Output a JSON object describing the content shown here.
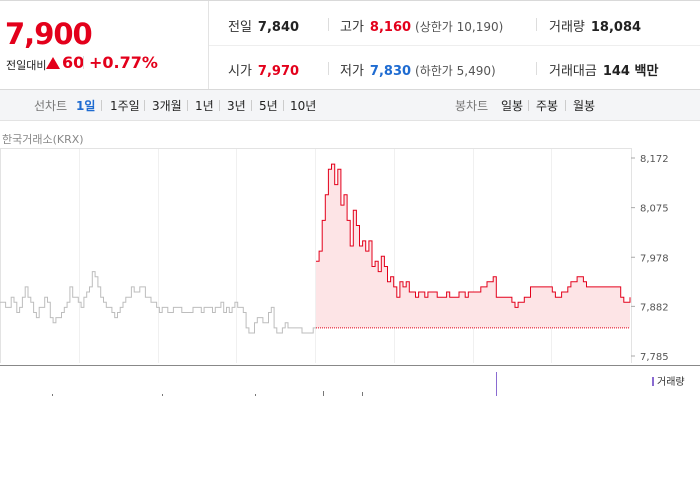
{
  "quote": {
    "price": "7,900",
    "change_label": "전일대비",
    "change_abs": "60",
    "change_pct": "+0.77%"
  },
  "stats": {
    "prev_close_label": "전일",
    "prev_close": "7,840",
    "high_label": "고가",
    "high": "8,160",
    "upper_limit": "(상한가 10,190)",
    "volume_label": "거래량",
    "volume": "18,084",
    "open_label": "시가",
    "open": "7,970",
    "low_label": "저가",
    "low": "7,830",
    "lower_limit": "(하한가 5,490)",
    "turnover_label": "거래대금",
    "turnover": "144 백만"
  },
  "nav": {
    "line_label": "선차트",
    "line_periods": [
      "1일",
      "1주일",
      "3개월",
      "1년",
      "3년",
      "5년",
      "10년"
    ],
    "selected_period": "1일",
    "candle_label": "봉차트",
    "candle_periods": [
      "일봉",
      "주봉",
      "월봉"
    ]
  },
  "chart": {
    "source": "한국거래소(KRX)",
    "volume_legend": "거래량",
    "colors": {
      "up": "#e3001b",
      "prev": "#bdbdbd",
      "fill": "#fde4e6",
      "volume": "#8a6bd1"
    }
  },
  "chart_data": {
    "type": "line",
    "y_ticks": [
      "8,172",
      "8,075",
      "7,978",
      "7,882",
      "7,785"
    ],
    "ylim": [
      7785,
      8172
    ],
    "baseline": 7840,
    "prev_day_series": [
      7890,
      7890,
      7880,
      7880,
      7900,
      7890,
      7870,
      7880,
      7900,
      7920,
      7900,
      7890,
      7870,
      7860,
      7880,
      7880,
      7900,
      7890,
      7860,
      7850,
      7860,
      7860,
      7870,
      7880,
      7890,
      7920,
      7900,
      7900,
      7890,
      7880,
      7900,
      7910,
      7920,
      7950,
      7940,
      7920,
      7900,
      7890,
      7880,
      7880,
      7870,
      7860,
      7870,
      7880,
      7890,
      7900,
      7900,
      7920,
      7910,
      7910,
      7920,
      7920,
      7900,
      7900,
      7890,
      7890,
      7880,
      7870,
      7880,
      7880,
      7870,
      7870,
      7880,
      7880,
      7880,
      7870,
      7870,
      7870,
      7870,
      7880,
      7880,
      7880,
      7870,
      7880,
      7880,
      7880,
      7870,
      7880,
      7880,
      7890,
      7870,
      7880,
      7870,
      7880,
      7890,
      7880,
      7880,
      7870,
      7840,
      7830,
      7830,
      7850,
      7860,
      7860,
      7850,
      7850,
      7870,
      7880,
      7840,
      7830,
      7830,
      7840,
      7850,
      7840,
      7840,
      7840,
      7840,
      7840,
      7830,
      7830,
      7830,
      7830,
      7840,
      7840
    ],
    "today_series": [
      7970,
      7990,
      8050,
      8100,
      8150,
      8160,
      8120,
      8150,
      8080,
      8100,
      8050,
      8000,
      8070,
      8040,
      8000,
      8010,
      7990,
      8010,
      7960,
      7970,
      7950,
      7980,
      7960,
      7930,
      7940,
      7920,
      7900,
      7930,
      7920,
      7930,
      7910,
      7910,
      7900,
      7910,
      7910,
      7900,
      7910,
      7910,
      7910,
      7900,
      7900,
      7900,
      7910,
      7900,
      7900,
      7900,
      7910,
      7910,
      7900,
      7910,
      7910,
      7910,
      7910,
      7920,
      7920,
      7930,
      7930,
      7940,
      7900,
      7900,
      7900,
      7900,
      7900,
      7890,
      7880,
      7890,
      7890,
      7900,
      7900,
      7920,
      7920,
      7920,
      7920,
      7920,
      7920,
      7920,
      7910,
      7900,
      7900,
      7910,
      7910,
      7920,
      7930,
      7930,
      7940,
      7940,
      7930,
      7920,
      7920,
      7920,
      7920,
      7920,
      7920,
      7920,
      7920,
      7920,
      7920,
      7920,
      7900,
      7890,
      7890,
      7900
    ]
  }
}
